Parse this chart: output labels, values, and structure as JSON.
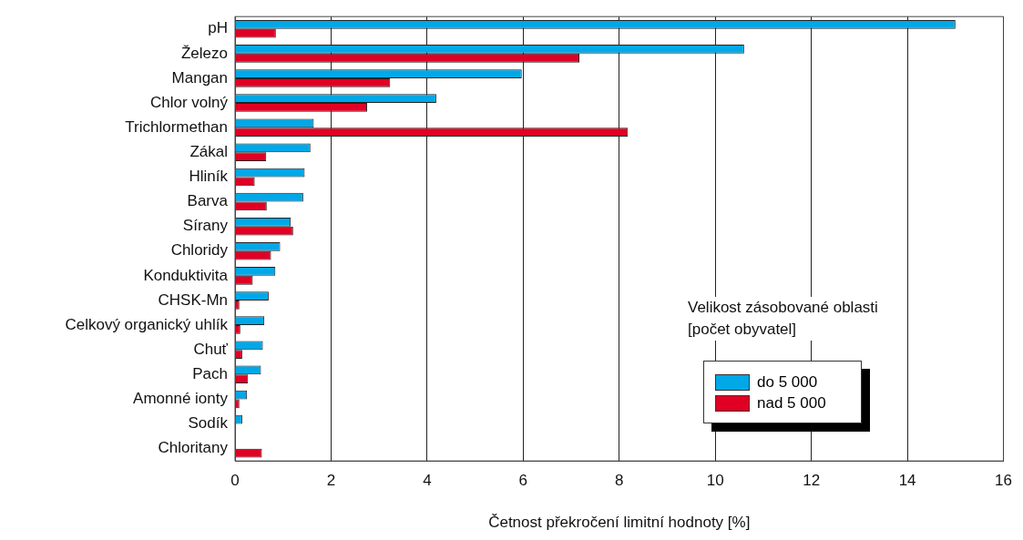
{
  "chart_data": {
    "type": "bar",
    "orientation": "horizontal",
    "xlabel": "Četnost překročení limitní hodnoty [%]",
    "legend_title": "Velikost zásobované oblasti\n[počet obyvatel]",
    "categories": [
      "pH",
      "Železo",
      "Mangan",
      "Chlor volný",
      "Trichlormethan",
      "Zákal",
      "Hliník",
      "Barva",
      "Sírany",
      "Chloridy",
      "Konduktivita",
      "CHSK-Mn",
      "Celkový organický uhlík",
      "Chuť",
      "Pach",
      "Amonné ionty",
      "Sodík",
      "Chloritany"
    ],
    "series": [
      {
        "name": "do 5 000",
        "color": "#00a8e8",
        "values": [
          15,
          10.6,
          5.97,
          4.19,
          1.64,
          1.57,
          1.45,
          1.42,
          1.16,
          0.94,
          0.84,
          0.7,
          0.61,
          0.58,
          0.54,
          0.25,
          0.15,
          null
        ]
      },
      {
        "name": "nad 5 000",
        "color": "#e00024",
        "values": [
          0.85,
          7.17,
          3.23,
          2.75,
          8.18,
          0.65,
          0.41,
          0.66,
          1.21,
          0.75,
          0.37,
          0.09,
          0.11,
          0.15,
          0.27,
          0.09,
          null,
          0.56
        ]
      }
    ],
    "xlim": [
      0,
      16
    ],
    "xticks": [
      0,
      2,
      4,
      6,
      8,
      10,
      12,
      14,
      16
    ],
    "grid": "x",
    "legend": "right"
  }
}
